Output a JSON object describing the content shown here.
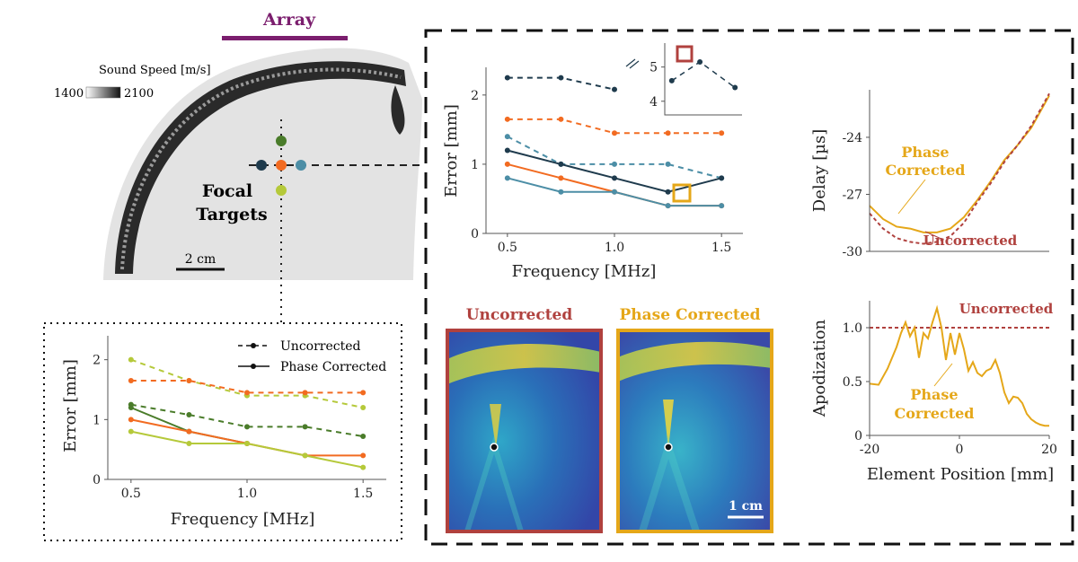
{
  "colors": {
    "uncorrected_dark": "#1f3b4d",
    "orange": "#f26b21",
    "teal": "#4c8ea6",
    "green": "#4a7c2a",
    "lime": "#b5c93a",
    "phase": "#e5a719",
    "red": "#b0413e",
    "purple": "#7b1e6e"
  },
  "skull_panel": {
    "array_label": "Array",
    "colorbar_title": "Sound Speed [m/s]",
    "colorbar_min": "1400",
    "colorbar_max": "2100",
    "focal_label_1": "Focal",
    "focal_label_2": "Targets",
    "scalebar_label": "2 cm"
  },
  "image_panels": {
    "uncorrected_title": "Uncorrected",
    "corrected_title": "Phase Corrected",
    "scalebar_label": "1 cm"
  },
  "chart_data": [
    {
      "type": "line",
      "id": "error-top",
      "xlabel": "Frequency [MHz]",
      "ylabel": "Error [mm]",
      "xlim": [
        0.4,
        1.6
      ],
      "ylim": [
        0,
        2.4
      ],
      "xticks": [
        "0.5",
        "1.0",
        "1.5"
      ],
      "yticks": [
        "0",
        "1",
        "2"
      ],
      "series": [
        {
          "color": "#1f3b4d",
          "style": "dashed",
          "x": [
            0.5,
            0.75,
            1.0
          ],
          "y": [
            2.25,
            2.25,
            2.08
          ]
        },
        {
          "color": "#f26b21",
          "style": "dashed",
          "x": [
            0.5,
            0.75,
            1.0,
            1.25,
            1.5
          ],
          "y": [
            1.65,
            1.65,
            1.45,
            1.45,
            1.45
          ]
        },
        {
          "color": "#4c8ea6",
          "style": "dashed",
          "x": [
            0.5,
            0.75,
            1.0,
            1.25,
            1.5
          ],
          "y": [
            1.4,
            1.0,
            1.0,
            1.0,
            0.8
          ]
        },
        {
          "color": "#1f3b4d",
          "style": "solid",
          "x": [
            0.5,
            0.75,
            1.0,
            1.25,
            1.5
          ],
          "y": [
            1.2,
            1.0,
            0.8,
            0.6,
            0.8
          ]
        },
        {
          "color": "#f26b21",
          "style": "solid",
          "x": [
            0.5,
            0.75,
            1.0,
            1.25,
            1.5
          ],
          "y": [
            1.0,
            0.8,
            0.6,
            0.4,
            0.4
          ]
        },
        {
          "color": "#4c8ea6",
          "style": "solid",
          "x": [
            0.5,
            0.75,
            1.0,
            1.25,
            1.5
          ],
          "y": [
            0.8,
            0.6,
            0.6,
            0.4,
            0.4
          ]
        }
      ]
    },
    {
      "type": "line",
      "id": "error-inset",
      "xlim": [
        1.0,
        1.55
      ],
      "ylim": [
        3.6,
        5.7
      ],
      "yticks": [
        "4",
        "5"
      ],
      "series": [
        {
          "color": "#1f3b4d",
          "style": "dashed",
          "x": [
            1.05,
            1.25,
            1.5
          ],
          "y": [
            4.6,
            5.15,
            4.4
          ]
        }
      ]
    },
    {
      "type": "line",
      "id": "error-bottom",
      "xlabel": "Frequency [MHz]",
      "ylabel": "Error [mm]",
      "xlim": [
        0.4,
        1.6
      ],
      "ylim": [
        0,
        2.4
      ],
      "xticks": [
        "0.5",
        "1.0",
        "1.5"
      ],
      "yticks": [
        "0",
        "1",
        "2"
      ],
      "legend": {
        "position": "top-right",
        "entries": [
          {
            "label": "Uncorrected",
            "style": "dashed"
          },
          {
            "label": "Phase Corrected",
            "style": "solid"
          }
        ]
      },
      "series": [
        {
          "color": "#b5c93a",
          "style": "dashed",
          "x": [
            0.5,
            0.75,
            1.0,
            1.25,
            1.5
          ],
          "y": [
            2.0,
            1.65,
            1.4,
            1.4,
            1.2
          ]
        },
        {
          "color": "#f26b21",
          "style": "dashed",
          "x": [
            0.5,
            0.75,
            1.0,
            1.25,
            1.5
          ],
          "y": [
            1.65,
            1.65,
            1.45,
            1.45,
            1.45
          ]
        },
        {
          "color": "#4a7c2a",
          "style": "dashed",
          "x": [
            0.5,
            0.75,
            1.0,
            1.25,
            1.5
          ],
          "y": [
            1.25,
            1.08,
            0.88,
            0.88,
            0.72
          ]
        },
        {
          "color": "#4a7c2a",
          "style": "solid",
          "x": [
            0.5,
            0.75,
            1.0
          ],
          "y": [
            1.2,
            0.8,
            0.6
          ]
        },
        {
          "color": "#f26b21",
          "style": "solid",
          "x": [
            0.5,
            0.75,
            1.0,
            1.25,
            1.5
          ],
          "y": [
            1.0,
            0.8,
            0.6,
            0.4,
            0.4
          ]
        },
        {
          "color": "#b5c93a",
          "style": "solid",
          "x": [
            0.5,
            0.75,
            1.0,
            1.25,
            1.5
          ],
          "y": [
            0.8,
            0.6,
            0.6,
            0.4,
            0.2
          ]
        }
      ]
    },
    {
      "type": "line",
      "id": "delay",
      "ylabel": "Delay [µs]",
      "xlim": [
        -20,
        20
      ],
      "ylim": [
        -30,
        -21.5
      ],
      "yticks": [
        "-24",
        "-27",
        "-30"
      ],
      "annotations": [
        "Phase Corrected",
        "Uncorrected"
      ],
      "series": [
        {
          "label": "Phase Corrected",
          "color": "#e5a719",
          "style": "solid",
          "x": [
            -20,
            -17,
            -14,
            -11,
            -8,
            -5,
            -2,
            1,
            4,
            7,
            10,
            13,
            16,
            20
          ],
          "y": [
            -27.6,
            -28.3,
            -28.7,
            -28.8,
            -29.0,
            -29.0,
            -28.8,
            -28.2,
            -27.3,
            -26.3,
            -25.2,
            -24.4,
            -23.5,
            -21.8
          ]
        },
        {
          "label": "Uncorrected",
          "color": "#b0413e",
          "style": "dashed",
          "x": [
            -20,
            -17,
            -14,
            -11,
            -8,
            -5,
            -2,
            1,
            4,
            7,
            10,
            13,
            16,
            20
          ],
          "y": [
            -28.0,
            -28.8,
            -29.3,
            -29.5,
            -29.6,
            -29.5,
            -29.2,
            -28.5,
            -27.4,
            -26.4,
            -25.3,
            -24.4,
            -23.4,
            -21.7
          ]
        }
      ]
    },
    {
      "type": "line",
      "id": "apodization",
      "xlabel": "Element Position [mm]",
      "ylabel": "Apodization",
      "xlim": [
        -20,
        20
      ],
      "ylim": [
        0,
        1.25
      ],
      "xticks": [
        "-20",
        "0",
        "20"
      ],
      "yticks": [
        "0",
        "0.5",
        "1.0"
      ],
      "annotations": [
        "Uncorrected",
        "Phase Corrected"
      ],
      "series": [
        {
          "label": "Uncorrected",
          "color": "#b0413e",
          "style": "dashed",
          "x": [
            -20,
            20
          ],
          "y": [
            1.0,
            1.0
          ]
        },
        {
          "label": "Phase Corrected",
          "color": "#e5a719",
          "style": "solid",
          "x": [
            -20,
            -18,
            -16,
            -15,
            -14,
            -13,
            -12,
            -11,
            -10,
            -9,
            -8,
            -7,
            -6,
            -5,
            -4,
            -3,
            -2,
            -1,
            0,
            1,
            2,
            3,
            4,
            5,
            6,
            7,
            8,
            9,
            10,
            11,
            12,
            13,
            14,
            15,
            16,
            17,
            18,
            19,
            20
          ],
          "y": [
            0.48,
            0.47,
            0.62,
            0.72,
            0.82,
            0.95,
            1.05,
            0.92,
            1.0,
            0.72,
            0.95,
            0.9,
            1.05,
            1.18,
            1.0,
            0.7,
            0.95,
            0.75,
            0.95,
            0.8,
            0.6,
            0.68,
            0.58,
            0.55,
            0.6,
            0.62,
            0.7,
            0.58,
            0.4,
            0.3,
            0.36,
            0.35,
            0.3,
            0.2,
            0.15,
            0.12,
            0.1,
            0.09,
            0.09
          ]
        }
      ]
    }
  ]
}
